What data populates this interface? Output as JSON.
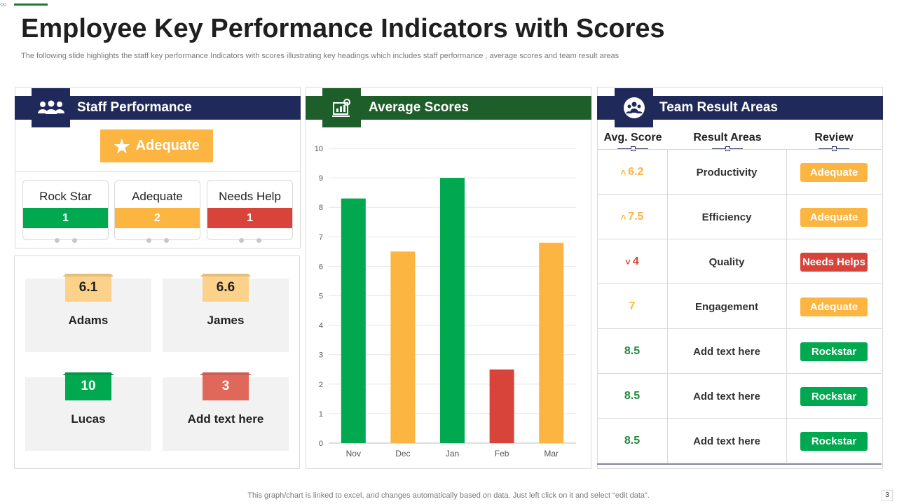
{
  "title": "Employee Key Performance Indicators with Scores",
  "subtitle": "The following slide highlights the staff key performance Indicators with scores illustrating key headings which includes staff performance , average scores and team result areas",
  "colors": {
    "navy": "#1f2a5a",
    "green": "#00a94f",
    "dark_green": "#1e5e2a",
    "amber": "#fbb540",
    "red": "#d9443a",
    "red_soft": "#e0685b",
    "amber_soft": "#fcd28a"
  },
  "staff_performance": {
    "header": "Staff Performance",
    "icon": "team-icon",
    "badge": "Adequate",
    "cards": [
      {
        "label": "Rock Star",
        "count": "1",
        "color": "#00a94f"
      },
      {
        "label": "Adequate",
        "count": "2",
        "color": "#fbb540"
      },
      {
        "label": "Needs Help",
        "count": "1",
        "color": "#d9443a"
      }
    ]
  },
  "people": [
    {
      "score": "6.1",
      "name": "Adams",
      "tag_color": "#fcd28a",
      "text_color": "#222222"
    },
    {
      "score": "6.6",
      "name": "James",
      "tag_color": "#fcd28a",
      "text_color": "#222222"
    },
    {
      "score": "10",
      "name": "Lucas",
      "tag_color": "#00a94f",
      "text_color": "#ffffff"
    },
    {
      "score": "3",
      "name": "Add text here",
      "tag_color": "#e0685b",
      "text_color": "#ffffff"
    }
  ],
  "average_scores": {
    "header": "Average Scores",
    "icon": "report-chart-icon"
  },
  "chart_data": {
    "type": "bar",
    "title": "Average Scores",
    "categories": [
      "Nov",
      "Dec",
      "Jan",
      "Feb",
      "Mar"
    ],
    "values": [
      8.3,
      6.5,
      9.0,
      2.5,
      6.8
    ],
    "colors": [
      "#00a94f",
      "#fbb540",
      "#00a94f",
      "#d9443a",
      "#fbb540"
    ],
    "ylim": [
      0,
      10
    ],
    "yticks": [
      "0",
      "1",
      "2",
      "3",
      "4",
      "5",
      "6",
      "7",
      "8",
      "9",
      "10"
    ],
    "grid": true,
    "xlabel": "",
    "ylabel": ""
  },
  "team_results": {
    "header": "Team Result Areas",
    "icon": "group-circle-icon",
    "columns": [
      "Avg. Score",
      "Result Areas",
      "Review"
    ],
    "rows": [
      {
        "arrow": "˄",
        "score": "6.2",
        "area": "Productivity",
        "review": "Adequate",
        "score_color": "#fbb540",
        "review_color": "#fbb540"
      },
      {
        "arrow": "˄",
        "score": "7.5",
        "area": "Efficiency",
        "review": "Adequate",
        "score_color": "#fbb540",
        "review_color": "#fbb540"
      },
      {
        "arrow": "˅",
        "score": "4",
        "area": "Quality",
        "review": "Needs Helps",
        "score_color": "#d9443a",
        "review_color": "#d9443a"
      },
      {
        "arrow": "",
        "score": "7",
        "area": "Engagement",
        "review": "Adequate",
        "score_color": "#fbb540",
        "review_color": "#fbb540"
      },
      {
        "arrow": "",
        "score": "8.5",
        "area": "Add  text here",
        "review": "Rockstar",
        "score_color": "#1e8a3e",
        "review_color": "#00a94f"
      },
      {
        "arrow": "",
        "score": "8.5",
        "area": "Add  text here",
        "review": "Rockstar",
        "score_color": "#1e8a3e",
        "review_color": "#00a94f"
      },
      {
        "arrow": "",
        "score": "8.5",
        "area": "Add  text here",
        "review": "Rockstar",
        "score_color": "#1e8a3e",
        "review_color": "#00a94f"
      }
    ]
  },
  "footer": "This graph/chart is linked to excel,  and changes automatically based on data. Just left click on it and select “edit data”.",
  "page_number": "3"
}
